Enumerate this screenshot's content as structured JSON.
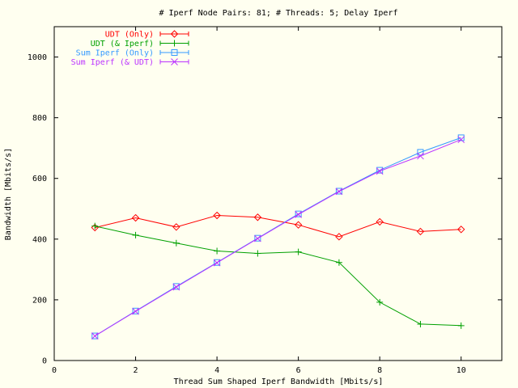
{
  "chart_data": {
    "type": "line",
    "title": "# Iperf Node Pairs: 81; # Threads: 5; Delay Iperf",
    "xlabel": "Thread Sum Shaped Iperf Bandwidth [Mbits/s]",
    "ylabel": "Bandwidth [Mbits/s]",
    "xlim": [
      0,
      11
    ],
    "ylim": [
      0,
      1100
    ],
    "xticks": [
      0,
      2,
      4,
      6,
      8,
      10
    ],
    "yticks": [
      0,
      200,
      400,
      600,
      800,
      1000
    ],
    "grid": false,
    "legend_position": "top-left",
    "x": [
      1,
      2,
      3,
      4,
      5,
      6,
      7,
      8,
      9,
      10
    ],
    "series": [
      {
        "name": "UDT (Only)",
        "color": "#ff0000",
        "marker": "diamond",
        "values": [
          438,
          470,
          440,
          478,
          472,
          447,
          408,
          457,
          425,
          432
        ]
      },
      {
        "name": "UDT (& Iperf)",
        "color": "#00a000",
        "marker": "plus",
        "values": [
          443,
          413,
          387,
          361,
          353,
          358,
          323,
          192,
          120,
          115
        ]
      },
      {
        "name": "Sum Iperf (Only)",
        "color": "#3399ff",
        "marker": "square",
        "values": [
          81,
          163,
          244,
          323,
          403,
          483,
          558,
          627,
          686,
          734
        ]
      },
      {
        "name": "Sum Iperf (& UDT)",
        "color": "#bb33ff",
        "marker": "cross",
        "values": [
          81,
          162,
          242,
          322,
          402,
          481,
          557,
          624,
          674,
          728
        ]
      }
    ]
  }
}
